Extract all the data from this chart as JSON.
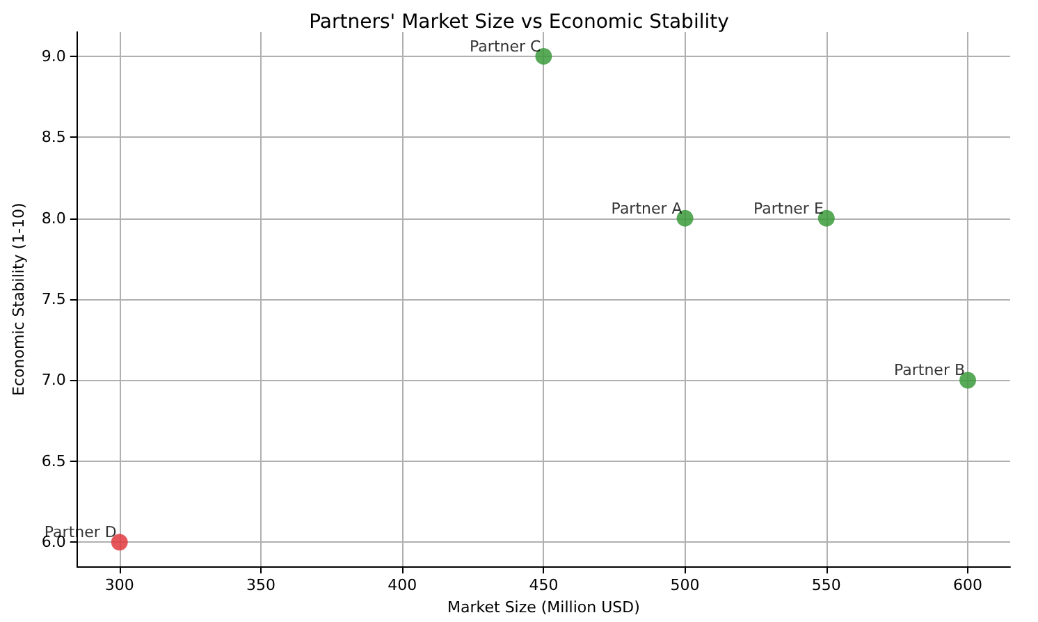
{
  "chart_data": {
    "type": "scatter",
    "title": "Partners' Market Size vs Economic Stability",
    "xlabel": "Market Size (Million USD)",
    "ylabel": "Economic Stability (1-10)",
    "x": [
      500,
      600,
      450,
      300,
      550
    ],
    "values": [
      8,
      7,
      9,
      6,
      8
    ],
    "colors": [
      "#3b9a3b",
      "#3b9a3b",
      "#3b9a3b",
      "#e0393e",
      "#3b9a3b"
    ],
    "annotations": [
      {
        "text": "Partner A",
        "x": 500,
        "y": 8
      },
      {
        "text": "Partner B",
        "x": 600,
        "y": 7
      },
      {
        "text": "Partner C",
        "x": 450,
        "y": 9
      },
      {
        "text": "Partner D",
        "x": 300,
        "y": 6
      },
      {
        "text": "Partner E",
        "x": 550,
        "y": 8
      }
    ],
    "xlim": [
      285,
      615
    ],
    "xticks": [
      300,
      350,
      400,
      450,
      500,
      550,
      600
    ],
    "ylim": [
      5.85,
      9.15
    ],
    "yticks": [
      {
        "value": 6,
        "label": "6.0"
      },
      6.5,
      {
        "value": 7,
        "label": "7.0"
      },
      7.5,
      {
        "value": 8,
        "label": "8.0"
      },
      8.5,
      {
        "value": 9,
        "label": "9.0"
      }
    ],
    "grid": true,
    "marker": "circle"
  }
}
